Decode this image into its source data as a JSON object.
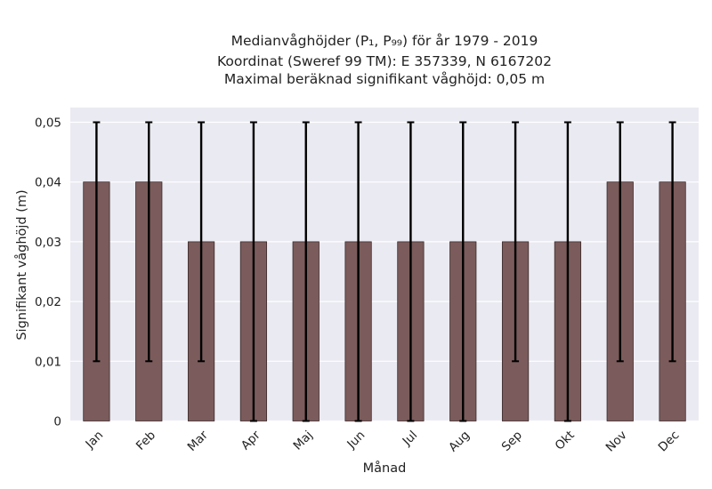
{
  "title": {
    "line1": "Medianvåghöjder (P₁, P₉₉) för år 1979 - 2019",
    "line2": "Koordinat (Sweref 99 TM): E 357339, N 6167202",
    "line3": "Maximal beräknad signifikant våghöjd: 0,05 m"
  },
  "chart_data": {
    "type": "bar",
    "title": "Medianvåghöjder (P₁, P₉₉) för år 1979 - 2019",
    "xlabel": "Månad",
    "ylabel": "Signifikant våghöjd (m)",
    "categories": [
      "Jan",
      "Feb",
      "Mar",
      "Apr",
      "Maj",
      "Jun",
      "Jul",
      "Aug",
      "Sep",
      "Okt",
      "Nov",
      "Dec"
    ],
    "values": [
      0.04,
      0.04,
      0.03,
      0.03,
      0.03,
      0.03,
      0.03,
      0.03,
      0.03,
      0.03,
      0.04,
      0.04
    ],
    "error_low": [
      0.01,
      0.01,
      0.01,
      0.0,
      0.0,
      0.0,
      0.0,
      0.0,
      0.01,
      0.0,
      0.01,
      0.01
    ],
    "error_high": [
      0.05,
      0.05,
      0.05,
      0.05,
      0.05,
      0.05,
      0.05,
      0.05,
      0.05,
      0.05,
      0.05,
      0.05
    ],
    "ylim": [
      0,
      0.0525
    ],
    "yticks": [
      0,
      0.01,
      0.02,
      0.03,
      0.04,
      0.05
    ],
    "ytick_labels": [
      "0",
      "0,01",
      "0,02",
      "0,03",
      "0,04",
      "0,05"
    ],
    "grid": true,
    "colors": {
      "bar": "#7b5b5b",
      "bar_edge": "#3a2a2a",
      "error": "#000000",
      "plot_bg": "#eaeaf2",
      "grid": "#ffffff"
    }
  }
}
